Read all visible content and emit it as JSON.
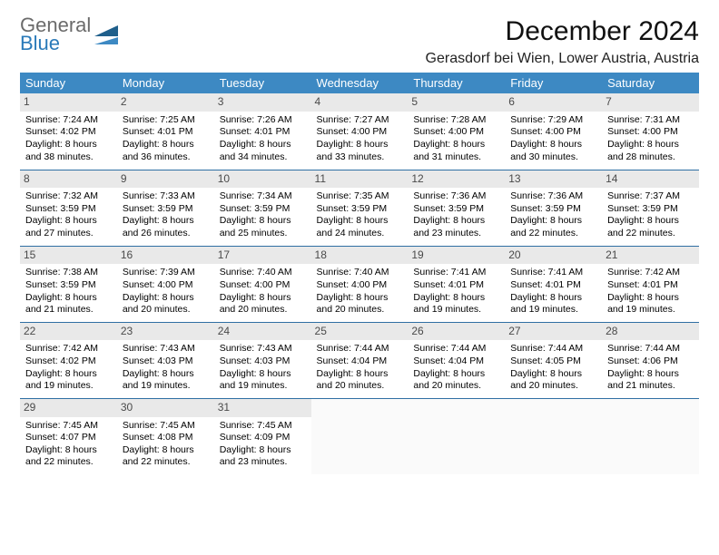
{
  "logo": {
    "word1": "General",
    "word2": "Blue"
  },
  "title": "December 2024",
  "location": "Gerasdorf bei Wien, Lower Austria, Austria",
  "colors": {
    "header_bg": "#3d89c3",
    "header_text": "#ffffff",
    "row_divider": "#2f6fa3",
    "daynum_bg": "#e9e9e9",
    "logo_gray": "#6b6b6b",
    "logo_blue": "#2a7ab9"
  },
  "weekdays": [
    "Sunday",
    "Monday",
    "Tuesday",
    "Wednesday",
    "Thursday",
    "Friday",
    "Saturday"
  ],
  "weeks": [
    [
      {
        "n": "1",
        "sr": "7:24 AM",
        "ss": "4:02 PM",
        "dl": "8 hours and 38 minutes."
      },
      {
        "n": "2",
        "sr": "7:25 AM",
        "ss": "4:01 PM",
        "dl": "8 hours and 36 minutes."
      },
      {
        "n": "3",
        "sr": "7:26 AM",
        "ss": "4:01 PM",
        "dl": "8 hours and 34 minutes."
      },
      {
        "n": "4",
        "sr": "7:27 AM",
        "ss": "4:00 PM",
        "dl": "8 hours and 33 minutes."
      },
      {
        "n": "5",
        "sr": "7:28 AM",
        "ss": "4:00 PM",
        "dl": "8 hours and 31 minutes."
      },
      {
        "n": "6",
        "sr": "7:29 AM",
        "ss": "4:00 PM",
        "dl": "8 hours and 30 minutes."
      },
      {
        "n": "7",
        "sr": "7:31 AM",
        "ss": "4:00 PM",
        "dl": "8 hours and 28 minutes."
      }
    ],
    [
      {
        "n": "8",
        "sr": "7:32 AM",
        "ss": "3:59 PM",
        "dl": "8 hours and 27 minutes."
      },
      {
        "n": "9",
        "sr": "7:33 AM",
        "ss": "3:59 PM",
        "dl": "8 hours and 26 minutes."
      },
      {
        "n": "10",
        "sr": "7:34 AM",
        "ss": "3:59 PM",
        "dl": "8 hours and 25 minutes."
      },
      {
        "n": "11",
        "sr": "7:35 AM",
        "ss": "3:59 PM",
        "dl": "8 hours and 24 minutes."
      },
      {
        "n": "12",
        "sr": "7:36 AM",
        "ss": "3:59 PM",
        "dl": "8 hours and 23 minutes."
      },
      {
        "n": "13",
        "sr": "7:36 AM",
        "ss": "3:59 PM",
        "dl": "8 hours and 22 minutes."
      },
      {
        "n": "14",
        "sr": "7:37 AM",
        "ss": "3:59 PM",
        "dl": "8 hours and 22 minutes."
      }
    ],
    [
      {
        "n": "15",
        "sr": "7:38 AM",
        "ss": "3:59 PM",
        "dl": "8 hours and 21 minutes."
      },
      {
        "n": "16",
        "sr": "7:39 AM",
        "ss": "4:00 PM",
        "dl": "8 hours and 20 minutes."
      },
      {
        "n": "17",
        "sr": "7:40 AM",
        "ss": "4:00 PM",
        "dl": "8 hours and 20 minutes."
      },
      {
        "n": "18",
        "sr": "7:40 AM",
        "ss": "4:00 PM",
        "dl": "8 hours and 20 minutes."
      },
      {
        "n": "19",
        "sr": "7:41 AM",
        "ss": "4:01 PM",
        "dl": "8 hours and 19 minutes."
      },
      {
        "n": "20",
        "sr": "7:41 AM",
        "ss": "4:01 PM",
        "dl": "8 hours and 19 minutes."
      },
      {
        "n": "21",
        "sr": "7:42 AM",
        "ss": "4:01 PM",
        "dl": "8 hours and 19 minutes."
      }
    ],
    [
      {
        "n": "22",
        "sr": "7:42 AM",
        "ss": "4:02 PM",
        "dl": "8 hours and 19 minutes."
      },
      {
        "n": "23",
        "sr": "7:43 AM",
        "ss": "4:03 PM",
        "dl": "8 hours and 19 minutes."
      },
      {
        "n": "24",
        "sr": "7:43 AM",
        "ss": "4:03 PM",
        "dl": "8 hours and 19 minutes."
      },
      {
        "n": "25",
        "sr": "7:44 AM",
        "ss": "4:04 PM",
        "dl": "8 hours and 20 minutes."
      },
      {
        "n": "26",
        "sr": "7:44 AM",
        "ss": "4:04 PM",
        "dl": "8 hours and 20 minutes."
      },
      {
        "n": "27",
        "sr": "7:44 AM",
        "ss": "4:05 PM",
        "dl": "8 hours and 20 minutes."
      },
      {
        "n": "28",
        "sr": "7:44 AM",
        "ss": "4:06 PM",
        "dl": "8 hours and 21 minutes."
      }
    ],
    [
      {
        "n": "29",
        "sr": "7:45 AM",
        "ss": "4:07 PM",
        "dl": "8 hours and 22 minutes."
      },
      {
        "n": "30",
        "sr": "7:45 AM",
        "ss": "4:08 PM",
        "dl": "8 hours and 22 minutes."
      },
      {
        "n": "31",
        "sr": "7:45 AM",
        "ss": "4:09 PM",
        "dl": "8 hours and 23 minutes."
      },
      null,
      null,
      null,
      null
    ]
  ],
  "labels": {
    "sunrise": "Sunrise:",
    "sunset": "Sunset:",
    "daylight": "Daylight:"
  }
}
